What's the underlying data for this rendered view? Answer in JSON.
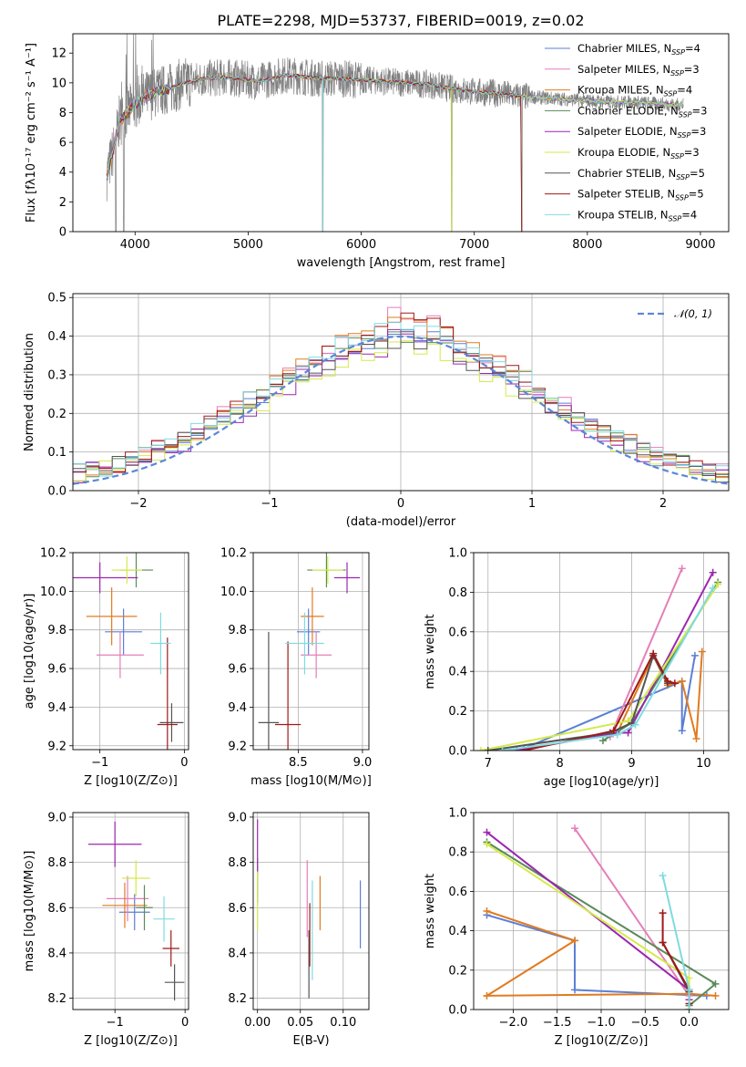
{
  "title": "PLATE=2298, MJD=53737, FIBERID=0019, z=0.02",
  "models": [
    {
      "name": "Chabrier MILES",
      "nssp": "4",
      "color": "#5b7fd6"
    },
    {
      "name": "Salpeter MILES",
      "nssp": "3",
      "color": "#e47fb8"
    },
    {
      "name": "Kroupa MILES",
      "nssp": "4",
      "color": "#e07b20"
    },
    {
      "name": "Chabrier ELODIE",
      "nssp": "3",
      "color": "#5a8a5a"
    },
    {
      "name": "Salpeter ELODIE",
      "nssp": "3",
      "color": "#9c27b0"
    },
    {
      "name": "Kroupa ELODIE",
      "nssp": "3",
      "color": "#d4ea4a"
    },
    {
      "name": "Chabrier STELIB",
      "nssp": "5",
      "color": "#555555"
    },
    {
      "name": "Salpeter STELIB",
      "nssp": "5",
      "color": "#a01818"
    },
    {
      "name": "Kroupa STELIB",
      "nssp": "4",
      "color": "#7fdbe0"
    }
  ],
  "legend_subscript": "SSP",
  "legend_prefix": "N",
  "chart_data": [
    {
      "id": "spectrum",
      "type": "line",
      "xlabel": "wavelength [Angstrom, rest frame]",
      "ylabel": "Flux [fλ10⁻¹⁷ erg cm⁻² s⁻¹ A⁻¹]",
      "xlim": [
        3450,
        9250
      ],
      "ylim": [
        0,
        13.3
      ],
      "xticks": [
        4000,
        5000,
        6000,
        7000,
        8000,
        9000
      ],
      "yticks": [
        0,
        2,
        4,
        6,
        8,
        10,
        12
      ],
      "data_color": "#808080",
      "data_x_range": [
        3750,
        8850
      ],
      "continuum": [
        [
          3750,
          3.8
        ],
        [
          3800,
          5.2
        ],
        [
          3860,
          7.4
        ],
        [
          3930,
          8.0
        ],
        [
          4000,
          8.6
        ],
        [
          4100,
          9.1
        ],
        [
          4200,
          9.4
        ],
        [
          4300,
          9.6
        ],
        [
          4400,
          9.9
        ],
        [
          4500,
          10.1
        ],
        [
          4600,
          10.3
        ],
        [
          4700,
          10.3
        ],
        [
          4800,
          10.4
        ],
        [
          4900,
          10.3
        ],
        [
          5000,
          10.2
        ],
        [
          5100,
          10.1
        ],
        [
          5200,
          10.3
        ],
        [
          5300,
          10.5
        ],
        [
          5400,
          10.5
        ],
        [
          5500,
          10.4
        ],
        [
          5600,
          10.3
        ],
        [
          5800,
          10.3
        ],
        [
          6000,
          10.2
        ],
        [
          6200,
          10.1
        ],
        [
          6400,
          10.0
        ],
        [
          6600,
          9.9
        ],
        [
          6800,
          9.6
        ],
        [
          7000,
          9.4
        ],
        [
          7200,
          9.3
        ],
        [
          7400,
          9.1
        ],
        [
          7600,
          9.0
        ],
        [
          7800,
          8.9
        ],
        [
          8000,
          8.8
        ],
        [
          8200,
          8.7
        ],
        [
          8400,
          8.7
        ],
        [
          8600,
          8.6
        ],
        [
          8850,
          8.5
        ]
      ],
      "model_cutoffs": [
        8850,
        8850,
        8850,
        8850,
        8850,
        8850,
        7420,
        7420,
        8850
      ],
      "dips": [
        [
          5660,
          0
        ],
        [
          6800,
          0
        ],
        [
          7420,
          0
        ],
        [
          3830,
          0
        ],
        [
          3900,
          0
        ]
      ]
    },
    {
      "id": "residuals",
      "type": "histogram",
      "xlabel": "(data-model)/error",
      "ylabel": "Normed distribution",
      "xlim": [
        -2.5,
        2.5
      ],
      "ylim": [
        0,
        0.51
      ],
      "xticks": [
        -2,
        -1,
        0,
        1,
        2
      ],
      "yticks": [
        0.0,
        0.1,
        0.2,
        0.3,
        0.4,
        0.5
      ],
      "gaussian_label": "𝒩(0, 1)",
      "gaussian_color": "#5b87d8",
      "bin_width": 0.1
    },
    {
      "id": "age-vs-Z",
      "type": "scatter",
      "xlabel": "Z [log10(Z/Z⊙)]",
      "ylabel": "age  [log10(age/yr)]",
      "xlim": [
        -1.32,
        0.05
      ],
      "ylim": [
        9.18,
        10.2
      ],
      "xticks": [
        -1,
        0
      ],
      "yticks": [
        9.2,
        9.4,
        9.6,
        9.8,
        10.0,
        10.2
      ],
      "points": [
        {
          "m": 0,
          "x": -0.72,
          "y": 9.79,
          "ex": 0.22,
          "ey": 0.12
        },
        {
          "m": 1,
          "x": -0.76,
          "y": 9.67,
          "ex": 0.28,
          "ey": 0.12
        },
        {
          "m": 2,
          "x": -0.86,
          "y": 9.87,
          "ex": 0.3,
          "ey": 0.15
        },
        {
          "m": 3,
          "x": -0.57,
          "y": 10.11,
          "ex": 0.2,
          "ey": 0.09
        },
        {
          "m": 4,
          "x": -1.0,
          "y": 10.07,
          "ex": 0.45,
          "ey": 0.08
        },
        {
          "m": 5,
          "x": -0.68,
          "y": 10.11,
          "ex": 0.18,
          "ey": 0.07
        },
        {
          "m": 6,
          "x": -0.15,
          "y": 9.32,
          "ex": 0.14,
          "ey": 0.1
        },
        {
          "m": 7,
          "x": -0.2,
          "y": 9.31,
          "ex": 0.12,
          "ey": 0.45
        },
        {
          "m": 8,
          "x": -0.28,
          "y": 9.73,
          "ex": 0.12,
          "ey": 0.16
        }
      ]
    },
    {
      "id": "age-vs-mass",
      "type": "scatter",
      "xlabel": "mass [log10(M/M⊙)]",
      "ylabel": "",
      "xlim": [
        8.15,
        9.05
      ],
      "ylim": [
        9.18,
        10.2
      ],
      "xticks": [
        8.5,
        9.0
      ],
      "yticks": [
        9.2,
        9.4,
        9.6,
        9.8,
        10.0,
        10.2
      ],
      "points": [
        {
          "m": 0,
          "x": 8.58,
          "y": 9.79,
          "ex": 0.09,
          "ey": 0.12
        },
        {
          "m": 1,
          "x": 8.64,
          "y": 9.67,
          "ex": 0.12,
          "ey": 0.12
        },
        {
          "m": 2,
          "x": 8.61,
          "y": 9.87,
          "ex": 0.09,
          "ey": 0.15
        },
        {
          "m": 3,
          "x": 8.72,
          "y": 10.11,
          "ex": 0.15,
          "ey": 0.09
        },
        {
          "m": 4,
          "x": 8.88,
          "y": 10.07,
          "ex": 0.1,
          "ey": 0.08
        },
        {
          "m": 5,
          "x": 8.73,
          "y": 10.11,
          "ex": 0.12,
          "ey": 0.07
        },
        {
          "m": 6,
          "x": 8.27,
          "y": 9.32,
          "ex": 0.08,
          "ey": 0.47
        },
        {
          "m": 7,
          "x": 8.42,
          "y": 9.31,
          "ex": 0.1,
          "ey": 0.43
        },
        {
          "m": 8,
          "x": 8.55,
          "y": 9.73,
          "ex": 0.15,
          "ey": 0.16
        }
      ]
    },
    {
      "id": "mass-weight-vs-age",
      "type": "line",
      "xlabel": "age  [log10(age/yr)]",
      "ylabel": "mass weight",
      "xlim": [
        6.8,
        10.35
      ],
      "ylim": [
        0,
        1.0
      ],
      "xticks": [
        7,
        8,
        9,
        10
      ],
      "yticks": [
        0.0,
        0.2,
        0.4,
        0.6,
        0.8,
        1.0
      ],
      "series": [
        {
          "m": 0,
          "x": [
            7.5,
            9.7,
            9.7,
            9.88
          ],
          "y": [
            0.01,
            0.35,
            0.1,
            0.48
          ]
        },
        {
          "m": 1,
          "x": [
            8.7,
            9.7
          ],
          "y": [
            0.07,
            0.92
          ]
        },
        {
          "m": 2,
          "x": [
            8.8,
            9.3,
            9.5,
            9.7,
            9.9,
            9.98
          ],
          "y": [
            0.09,
            0.48,
            0.33,
            0.35,
            0.06,
            0.5
          ]
        },
        {
          "m": 3,
          "x": [
            8.6,
            9.0,
            10.2
          ],
          "y": [
            0.05,
            0.14,
            0.85
          ]
        },
        {
          "m": 4,
          "x": [
            7.4,
            8.8,
            8.95,
            10.13
          ],
          "y": [
            0.0,
            0.09,
            0.09,
            0.9
          ]
        },
        {
          "m": 5,
          "x": [
            6.9,
            8.95,
            10.2
          ],
          "y": [
            0.0,
            0.15,
            0.84
          ]
        },
        {
          "m": 6,
          "x": [
            7.0,
            8.7,
            9.0,
            9.3,
            9.5
          ],
          "y": [
            0.0,
            0.09,
            0.14,
            0.48,
            0.34
          ]
        },
        {
          "m": 7,
          "x": [
            7.5,
            8.75,
            9.3,
            9.5,
            9.6
          ],
          "y": [
            0.0,
            0.1,
            0.49,
            0.35,
            0.34
          ]
        },
        {
          "m": 8,
          "x": [
            7.2,
            8.8,
            9.05,
            10.13
          ],
          "y": [
            0.0,
            0.08,
            0.13,
            0.82
          ]
        }
      ]
    },
    {
      "id": "mass-vs-Z",
      "type": "scatter",
      "xlabel": "Z [log10(Z/Z⊙)]",
      "ylabel": "mass [log10(M/M⊙)]",
      "xlim": [
        -1.6,
        0.05
      ],
      "ylim": [
        8.15,
        9.02
      ],
      "xticks": [
        -1,
        0
      ],
      "yticks": [
        8.2,
        8.4,
        8.6,
        8.8,
        9.0
      ],
      "points": [
        {
          "m": 0,
          "x": -0.72,
          "y": 8.58,
          "ex": 0.22,
          "ey": 0.08
        },
        {
          "m": 1,
          "x": -0.82,
          "y": 8.64,
          "ex": 0.3,
          "ey": 0.1
        },
        {
          "m": 2,
          "x": -0.86,
          "y": 8.61,
          "ex": 0.32,
          "ey": 0.1
        },
        {
          "m": 3,
          "x": -0.58,
          "y": 8.6,
          "ex": 0.12,
          "ey": 0.1
        },
        {
          "m": 4,
          "x": -1.0,
          "y": 8.88,
          "ex": 0.38,
          "ey": 0.1
        },
        {
          "m": 5,
          "x": -0.7,
          "y": 8.73,
          "ex": 0.2,
          "ey": 0.08
        },
        {
          "m": 6,
          "x": -0.15,
          "y": 8.27,
          "ex": 0.14,
          "ey": 0.08
        },
        {
          "m": 7,
          "x": -0.2,
          "y": 8.42,
          "ex": 0.12,
          "ey": 0.08
        },
        {
          "m": 8,
          "x": -0.3,
          "y": 8.55,
          "ex": 0.15,
          "ey": 0.1
        }
      ]
    },
    {
      "id": "mass-vs-EBV",
      "type": "scatter",
      "xlabel": "E(B-V)",
      "ylabel": "",
      "xlim": [
        -0.005,
        0.13
      ],
      "ylim": [
        8.15,
        9.02
      ],
      "xticks": [
        0.0,
        0.05,
        0.1
      ],
      "yticks": [
        8.2,
        8.4,
        8.6,
        8.8,
        9.0
      ],
      "points": [
        {
          "m": 0,
          "x": 0.12,
          "y": 8.57,
          "ex": 0,
          "ey": 0.15
        },
        {
          "m": 1,
          "x": 0.058,
          "y": 8.64,
          "ex": 0,
          "ey": 0.17
        },
        {
          "m": 2,
          "x": 0.073,
          "y": 8.62,
          "ex": 0,
          "ey": 0.12
        },
        {
          "m": 3,
          "x": 0.0,
          "y": 8.72,
          "ex": 0,
          "ey": 0.1
        },
        {
          "m": 4,
          "x": 0.0,
          "y": 8.87,
          "ex": 0,
          "ey": 0.12
        },
        {
          "m": 5,
          "x": 0.0,
          "y": 8.63,
          "ex": 0,
          "ey": 0.13
        },
        {
          "m": 6,
          "x": 0.06,
          "y": 8.35,
          "ex": 0,
          "ey": 0.15
        },
        {
          "m": 7,
          "x": 0.061,
          "y": 8.48,
          "ex": 0,
          "ey": 0.14
        },
        {
          "m": 8,
          "x": 0.064,
          "y": 8.5,
          "ex": 0,
          "ey": 0.22
        }
      ]
    },
    {
      "id": "mass-weight-vs-Z",
      "type": "line",
      "xlabel": "Z [log10(Z/Z⊙)]",
      "ylabel": "mass weight",
      "xlim": [
        -2.45,
        0.45
      ],
      "ylim": [
        0,
        1.0
      ],
      "xticks": [
        -2.0,
        -1.5,
        -1.0,
        -0.5,
        0.0
      ],
      "yticks": [
        0.0,
        0.2,
        0.4,
        0.6,
        0.8,
        1.0
      ],
      "series": [
        {
          "m": 0,
          "x": [
            -2.3,
            -1.3,
            -1.3,
            0.2
          ],
          "y": [
            0.48,
            0.35,
            0.1,
            0.07
          ]
        },
        {
          "m": 1,
          "x": [
            -1.3,
            0.0
          ],
          "y": [
            0.92,
            0.07
          ]
        },
        {
          "m": 2,
          "x": [
            -2.3,
            -1.3,
            -2.3,
            0.0,
            0.3
          ],
          "y": [
            0.5,
            0.35,
            0.07,
            0.08,
            0.07
          ]
        },
        {
          "m": 3,
          "x": [
            -2.3,
            0.3,
            0.0
          ],
          "y": [
            0.85,
            0.13,
            0.02
          ]
        },
        {
          "m": 4,
          "x": [
            -2.3,
            0.0,
            0.0
          ],
          "y": [
            0.9,
            0.1,
            0.05
          ]
        },
        {
          "m": 5,
          "x": [
            -2.3,
            0.0,
            0.0
          ],
          "y": [
            0.84,
            0.16,
            0.0
          ]
        },
        {
          "m": 6,
          "x": [
            -0.3,
            0.0,
            0.0
          ],
          "y": [
            0.34,
            0.09,
            0.0
          ]
        },
        {
          "m": 7,
          "x": [
            -0.3,
            -0.3,
            0.0,
            0.0
          ],
          "y": [
            0.49,
            0.34,
            0.1,
            0.03
          ]
        },
        {
          "m": 8,
          "x": [
            -0.3,
            0.0,
            0.0
          ],
          "y": [
            0.68,
            0.1,
            0.0
          ]
        }
      ]
    }
  ]
}
